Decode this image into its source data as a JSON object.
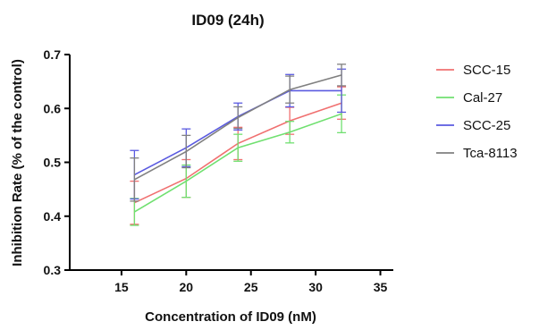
{
  "chart_data": {
    "type": "line",
    "title": "ID09 (24h)",
    "xlabel": "Concentration of ID09 (nM)",
    "ylabel": "Inhibition Rate (% of the control)",
    "xlim": [
      11,
      36
    ],
    "ylim": [
      0.3,
      0.7
    ],
    "xticks": [
      "15",
      "20",
      "25",
      "30",
      "35"
    ],
    "yticks": [
      "0.3",
      "0.4",
      "0.5",
      "0.6",
      "0.7"
    ],
    "x": [
      16,
      20,
      24,
      28,
      32
    ],
    "grid": false,
    "legend_position": "right",
    "series": [
      {
        "name": "SCC-15",
        "color": "#f07070",
        "values": [
          0.425,
          0.47,
          0.535,
          0.577,
          0.61
        ],
        "errors": [
          0.04,
          0.035,
          0.03,
          0.025,
          0.03
        ]
      },
      {
        "name": "Cal-27",
        "color": "#70e070",
        "values": [
          0.408,
          0.465,
          0.527,
          0.556,
          0.59
        ],
        "errors": [
          0.025,
          0.03,
          0.025,
          0.02,
          0.035
        ]
      },
      {
        "name": "SCC-25",
        "color": "#5a5ae0",
        "values": [
          0.477,
          0.527,
          0.585,
          0.633,
          0.633
        ],
        "errors": [
          0.045,
          0.035,
          0.025,
          0.03,
          0.04
        ]
      },
      {
        "name": "Tca-8113",
        "color": "#808080",
        "values": [
          0.468,
          0.52,
          0.583,
          0.635,
          0.662
        ],
        "errors": [
          0.04,
          0.03,
          0.02,
          0.025,
          0.02
        ]
      }
    ]
  }
}
